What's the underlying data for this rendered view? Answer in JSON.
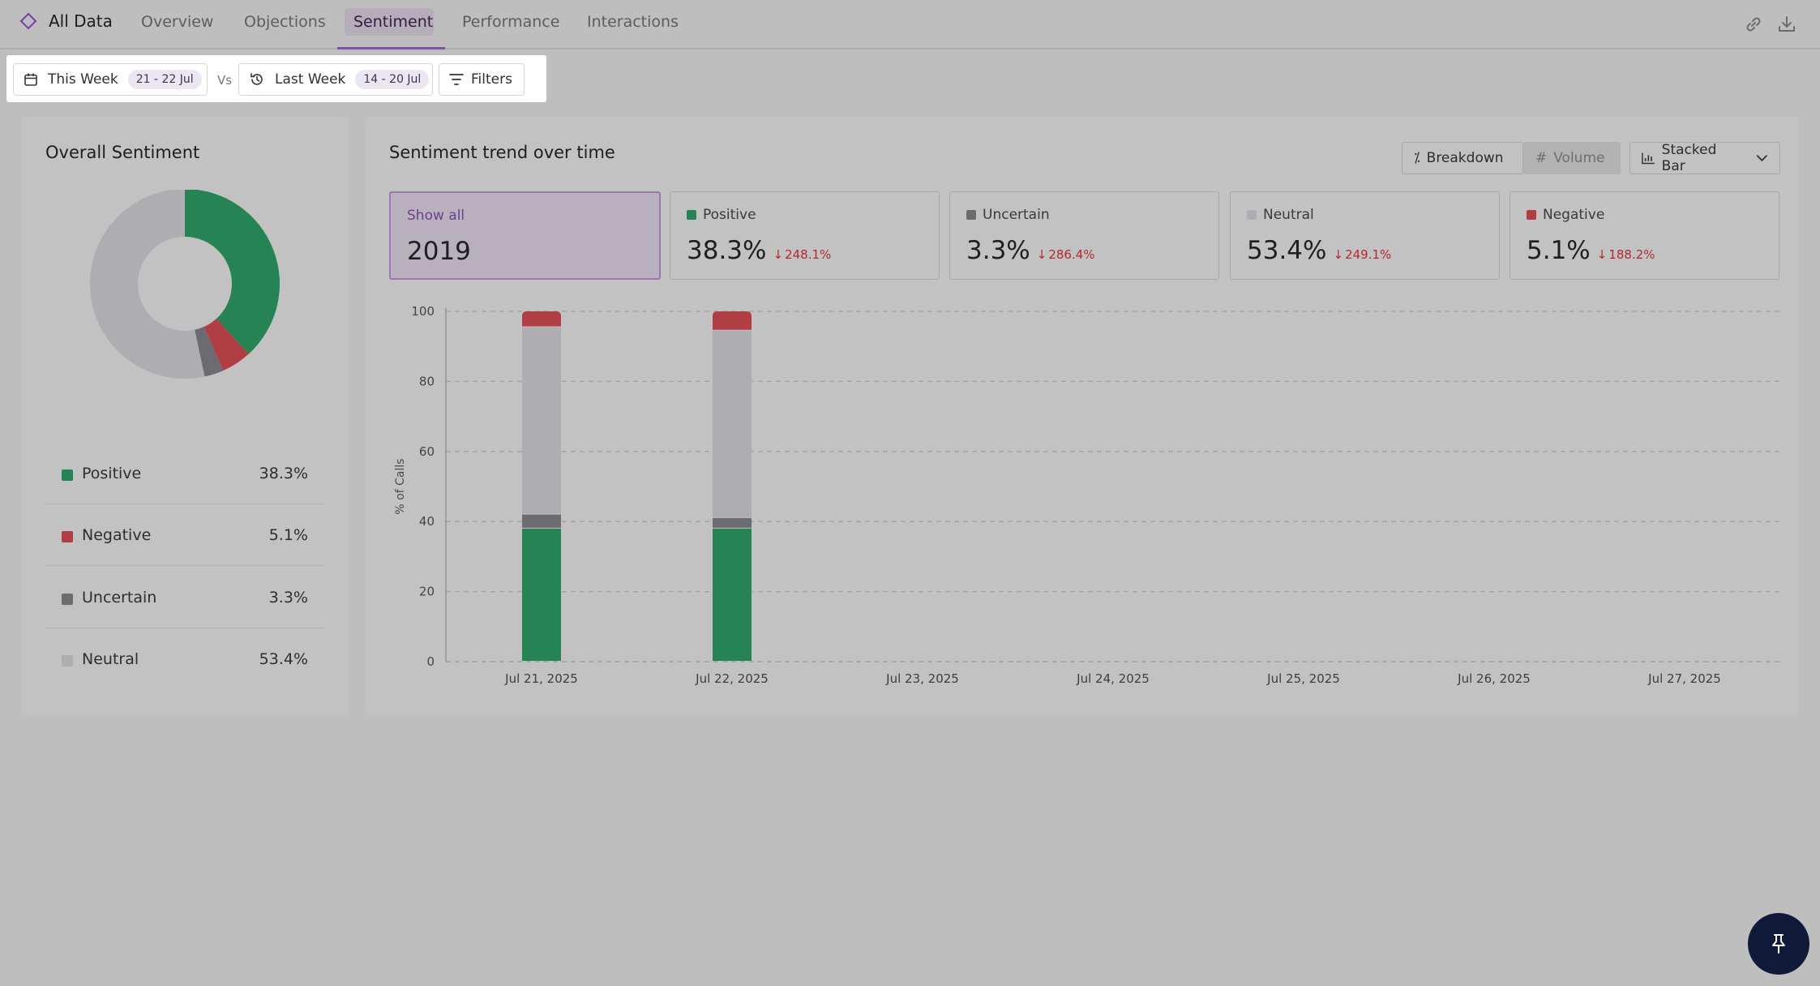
{
  "nav": {
    "brand": "All Data",
    "tabs": [
      {
        "label": "Overview"
      },
      {
        "label": "Objections"
      },
      {
        "label": "Sentiment"
      },
      {
        "label": "Performance"
      },
      {
        "label": "Interactions"
      }
    ],
    "active_tab": "Sentiment",
    "icons": [
      "link-icon",
      "download-icon"
    ]
  },
  "filters": {
    "current": {
      "label": "This Week",
      "range": "21 - 22 Jul"
    },
    "vs_label": "Vs",
    "previous": {
      "label": "Last Week",
      "range": "14 - 20 Jul"
    },
    "filters_label": "Filters"
  },
  "overall": {
    "title": "Overall Sentiment",
    "legend": [
      {
        "name": "Positive",
        "value": "38.3%"
      },
      {
        "name": "Negative",
        "value": "5.1%"
      },
      {
        "name": "Uncertain",
        "value": "3.3%"
      },
      {
        "name": "Neutral",
        "value": "53.4%"
      }
    ]
  },
  "trend": {
    "title": "Sentiment trend over time",
    "controls": {
      "breakdown": "Breakdown",
      "volume": "Volume",
      "chart_type": "Stacked Bar"
    },
    "cards": {
      "show_all": {
        "label": "Show all",
        "value": "2019"
      },
      "positive": {
        "label": "Positive",
        "value": "38.3%",
        "delta": "248.1%"
      },
      "uncertain": {
        "label": "Uncertain",
        "value": "3.3%",
        "delta": "286.4%"
      },
      "neutral": {
        "label": "Neutral",
        "value": "53.4%",
        "delta": "249.1%"
      },
      "negative": {
        "label": "Negative",
        "value": "5.1%",
        "delta": "188.2%"
      }
    }
  },
  "colors": {
    "positive": "#268454",
    "negative": "#b13e44",
    "uncertain": "#6b6b70",
    "neutral": "#aeadb1",
    "accent": "#7f52a7"
  },
  "chart_data": [
    {
      "type": "pie",
      "title": "Overall Sentiment",
      "categories": [
        "Positive",
        "Negative",
        "Uncertain",
        "Neutral"
      ],
      "values": [
        38.3,
        5.1,
        3.3,
        53.4
      ],
      "colors": [
        "#268454",
        "#b13e44",
        "#6b6b70",
        "#aeadb1"
      ]
    },
    {
      "type": "bar",
      "stacked": true,
      "title": "Sentiment trend over time",
      "ylabel": "% of Calls",
      "xlabel": "",
      "ylim": [
        0,
        100
      ],
      "yticks": [
        0,
        20,
        40,
        60,
        80,
        100
      ],
      "grid": true,
      "categories": [
        "Jul 21, 2025",
        "Jul 22, 2025",
        "Jul 23, 2025",
        "Jul 24, 2025",
        "Jul 25, 2025",
        "Jul 26, 2025",
        "Jul 27, 2025"
      ],
      "series": [
        {
          "name": "Positive",
          "color": "#268454",
          "values": [
            38,
            38,
            null,
            null,
            null,
            null,
            null
          ]
        },
        {
          "name": "Uncertain",
          "color": "#6b6b70",
          "values": [
            4,
            3,
            null,
            null,
            null,
            null,
            null
          ]
        },
        {
          "name": "Neutral",
          "color": "#aeadb1",
          "values": [
            53.5,
            53.5,
            null,
            null,
            null,
            null,
            null
          ]
        },
        {
          "name": "Negative",
          "color": "#b13e44",
          "values": [
            4.5,
            5.5,
            null,
            null,
            null,
            null,
            null
          ]
        }
      ]
    }
  ]
}
